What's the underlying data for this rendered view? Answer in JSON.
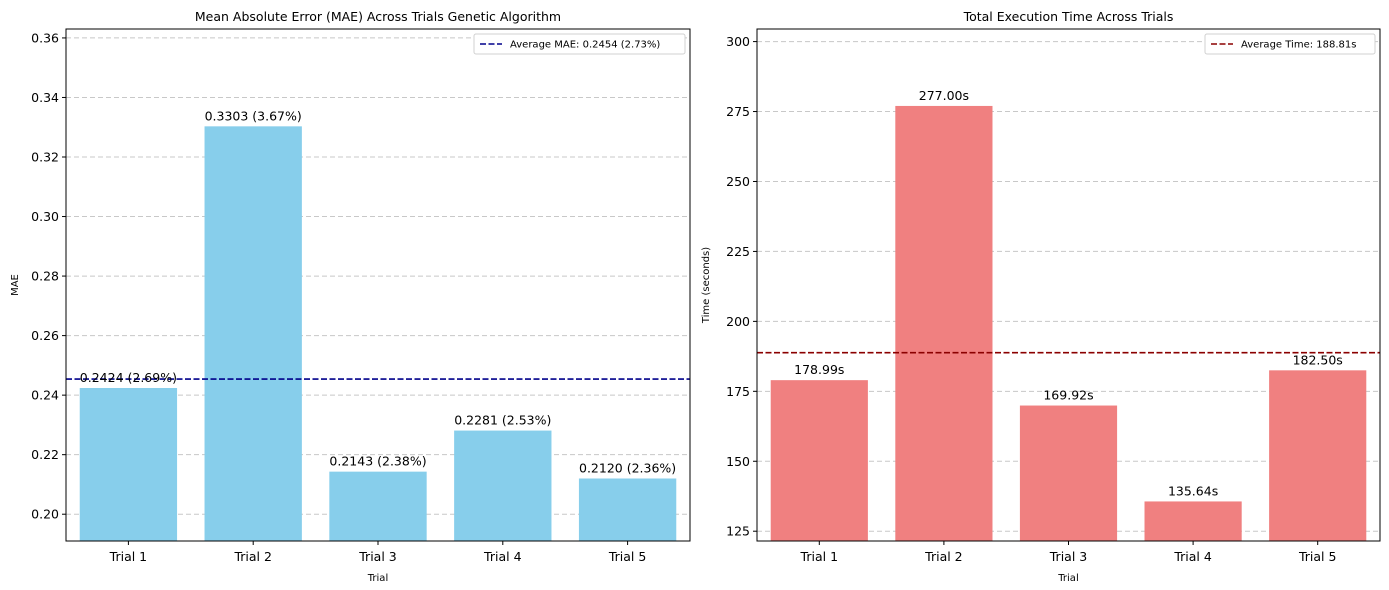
{
  "chart_data": [
    {
      "type": "bar",
      "title": "Mean Absolute Error (MAE) Across Trials Genetic Algorithm",
      "xlabel": "Trial",
      "ylabel": "MAE",
      "categories": [
        "Trial 1",
        "Trial 2",
        "Trial 3",
        "Trial 4",
        "Trial 5"
      ],
      "values": [
        0.2424,
        0.3303,
        0.2143,
        0.2281,
        0.212
      ],
      "data_labels": [
        "0.2424 (2.69%)",
        "0.3303 (3.67%)",
        "0.2143 (2.38%)",
        "0.2281 (2.53%)",
        "0.2120 (2.36%)"
      ],
      "ylim": [
        0.191,
        0.363
      ],
      "yticks": [
        0.2,
        0.22,
        0.24,
        0.26,
        0.28,
        0.3,
        0.32,
        0.34,
        0.36
      ],
      "ytick_labels": [
        "0.20",
        "0.22",
        "0.24",
        "0.26",
        "0.28",
        "0.30",
        "0.32",
        "0.34",
        "0.36"
      ],
      "bar_color": "#87ceeb",
      "reference_line": {
        "value": 0.2454,
        "color": "#00008b",
        "label": "Average MAE: 0.2454 (2.73%)"
      },
      "grid": "y",
      "legend_position": "top-right"
    },
    {
      "type": "bar",
      "title": "Total Execution Time Across Trials",
      "xlabel": "Trial",
      "ylabel": "Time (seconds)",
      "categories": [
        "Trial 1",
        "Trial 2",
        "Trial 3",
        "Trial 4",
        "Trial 5"
      ],
      "values": [
        178.99,
        277.0,
        169.92,
        135.64,
        182.5
      ],
      "data_labels": [
        "178.99s",
        "277.00s",
        "169.92s",
        "135.64s",
        "182.50s"
      ],
      "ylim": [
        121.5,
        304.5
      ],
      "yticks": [
        125,
        150,
        175,
        200,
        225,
        250,
        275,
        300
      ],
      "ytick_labels": [
        "125",
        "150",
        "175",
        "200",
        "225",
        "250",
        "275",
        "300"
      ],
      "bar_color": "#f08080",
      "reference_line": {
        "value": 188.81,
        "color": "#8b0000",
        "label": "Average Time: 188.81s"
      },
      "grid": "y",
      "legend_position": "top-right"
    }
  ]
}
